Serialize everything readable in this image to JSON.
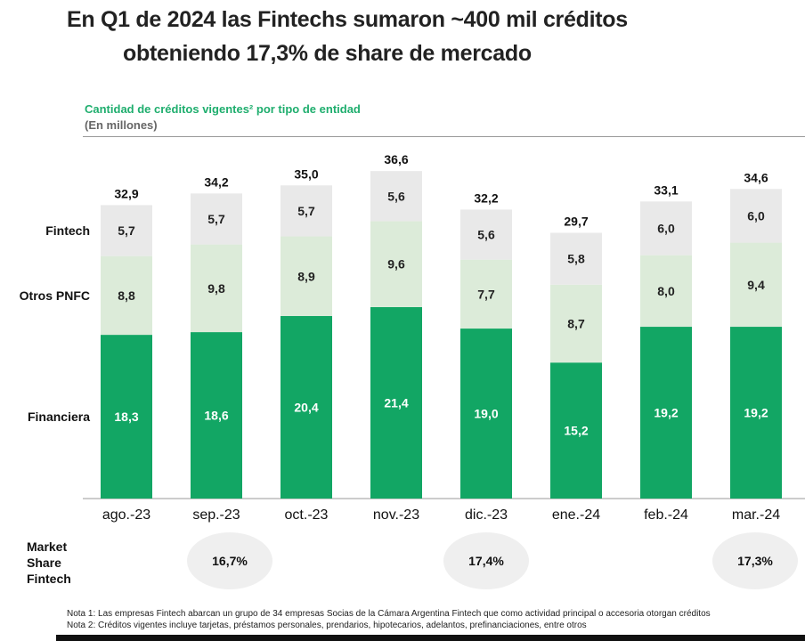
{
  "title_line1": "En Q1 de 2024 las Fintechs sumaron ~400 mil créditos",
  "title_line2": "obteniendo 17,3% de share de mercado",
  "market_share": {
    "label": "Market Share Fintech",
    "values": [
      {
        "month": "sep.-23",
        "value": "16,7%"
      },
      {
        "month": "dic.-23",
        "value": "17,4%"
      },
      {
        "month": "mar.-24",
        "value": "17,3%"
      }
    ]
  },
  "notes": [
    "Nota 1: Las empresas Fintech abarcan un grupo de 34 empresas Socias de la Cámara Argentina Fintech que como actividad principal o accesoria otorgan créditos",
    "Nota 2: Créditos vigentes incluye tarjetas, préstamos personales, prendarios, hipotecarios, adelantos, prefinanciaciones, entre otros"
  ],
  "colors": {
    "financiera": "#12a664",
    "otros": "#dcebd9",
    "fintech": "#e9e9e9",
    "title_green": "#1fae6e"
  },
  "chart_data": {
    "type": "bar",
    "stacked": true,
    "title": "Cantidad de créditos vigentes² por tipo de entidad",
    "subtitle": "(En millones)",
    "categories": [
      "ago.-23",
      "sep.-23",
      "oct.-23",
      "nov.-23",
      "dic.-23",
      "ene.-24",
      "feb.-24",
      "mar.-24"
    ],
    "series": [
      {
        "name": "Financiera",
        "values": [
          18.3,
          18.6,
          20.4,
          21.4,
          19.0,
          15.2,
          19.2,
          19.2
        ],
        "labels": [
          "18,3",
          "18,6",
          "20,4",
          "21,4",
          "19,0",
          "15,2",
          "19,2",
          "19,2"
        ]
      },
      {
        "name": "Otros PNFC",
        "values": [
          8.8,
          9.8,
          8.9,
          9.6,
          7.7,
          8.7,
          8.0,
          9.4
        ],
        "labels": [
          "8,8",
          "9,8",
          "8,9",
          "9,6",
          "7,7",
          "8,7",
          "8,0",
          "9,4"
        ]
      },
      {
        "name": "Fintech",
        "values": [
          5.7,
          5.7,
          5.7,
          5.6,
          5.6,
          5.8,
          6.0,
          6.0
        ],
        "labels": [
          "5,7",
          "5,7",
          "5,7",
          "5,6",
          "5,6",
          "5,8",
          "6,0",
          "6,0"
        ]
      }
    ],
    "totals": [
      "32,9",
      "34,2",
      "35,0",
      "36,6",
      "32,2",
      "29,7",
      "33,1",
      "34,6"
    ],
    "ylim": [
      0,
      40
    ],
    "legend": "left"
  }
}
